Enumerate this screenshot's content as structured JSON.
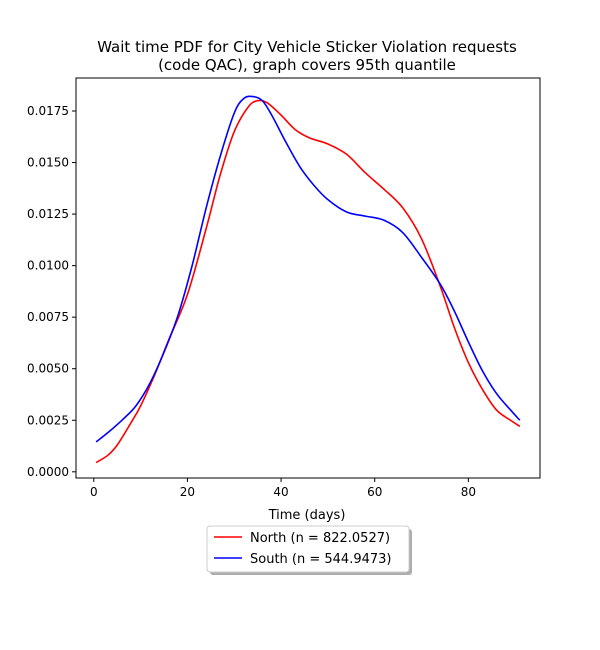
{
  "chart_data": {
    "type": "line",
    "title_lines": [
      "Wait time PDF for City Vehicle Sticker Violation  requests",
      "(code QAC), graph covers 95th quantile"
    ],
    "xlabel": "Time (days)",
    "ylabel": "",
    "xlim": [
      -3.8,
      95.3
    ],
    "ylim": [
      -0.0003,
      0.0191
    ],
    "xticks": [
      0,
      20,
      40,
      60,
      80
    ],
    "xtick_labels": [
      "0",
      "20",
      "40",
      "60",
      "80"
    ],
    "yticks": [
      0,
      0.0025,
      0.005,
      0.0075,
      0.01,
      0.0125,
      0.015,
      0.0175
    ],
    "ytick_labels": [
      "0.0000",
      "0.0025",
      "0.0050",
      "0.0075",
      "0.0100",
      "0.0125",
      "0.0150",
      "0.0175"
    ],
    "grid": false,
    "legend_position": "below-center",
    "series": [
      {
        "name": "North (n = 822.0527)",
        "color": "#ff0000",
        "x": [
          0.5,
          3,
          5,
          8,
          10,
          13,
          16,
          20,
          24,
          27,
          30,
          33,
          35,
          37,
          40,
          43,
          46,
          50,
          54,
          58,
          62,
          66,
          70,
          74,
          77,
          80,
          83,
          86,
          89,
          91
        ],
        "y": [
          0.00045,
          0.0008,
          0.0013,
          0.0024,
          0.0032,
          0.0047,
          0.0064,
          0.0086,
          0.0118,
          0.0144,
          0.0165,
          0.0177,
          0.018,
          0.0179,
          0.0173,
          0.0166,
          0.0162,
          0.0159,
          0.0154,
          0.0145,
          0.0137,
          0.0128,
          0.0113,
          0.009,
          0.007,
          0.0053,
          0.004,
          0.003,
          0.0025,
          0.0022
        ]
      },
      {
        "name": "South (n = 544.9473)",
        "color": "#0000ff",
        "x": [
          0.5,
          3,
          6,
          9,
          12,
          15,
          18,
          21,
          24,
          27,
          30,
          32,
          34,
          36,
          38,
          41,
          44,
          47,
          50,
          54,
          58,
          62,
          66,
          70,
          74,
          77,
          80,
          83,
          86,
          89,
          91
        ],
        "y": [
          0.00145,
          0.0019,
          0.0025,
          0.0032,
          0.0043,
          0.0058,
          0.0076,
          0.01,
          0.0128,
          0.0153,
          0.0174,
          0.0181,
          0.0182,
          0.018,
          0.0173,
          0.016,
          0.0148,
          0.0139,
          0.0132,
          0.0126,
          0.0124,
          0.0122,
          0.0116,
          0.0104,
          0.0091,
          0.0078,
          0.0063,
          0.0049,
          0.0038,
          0.003,
          0.0025
        ]
      }
    ]
  }
}
